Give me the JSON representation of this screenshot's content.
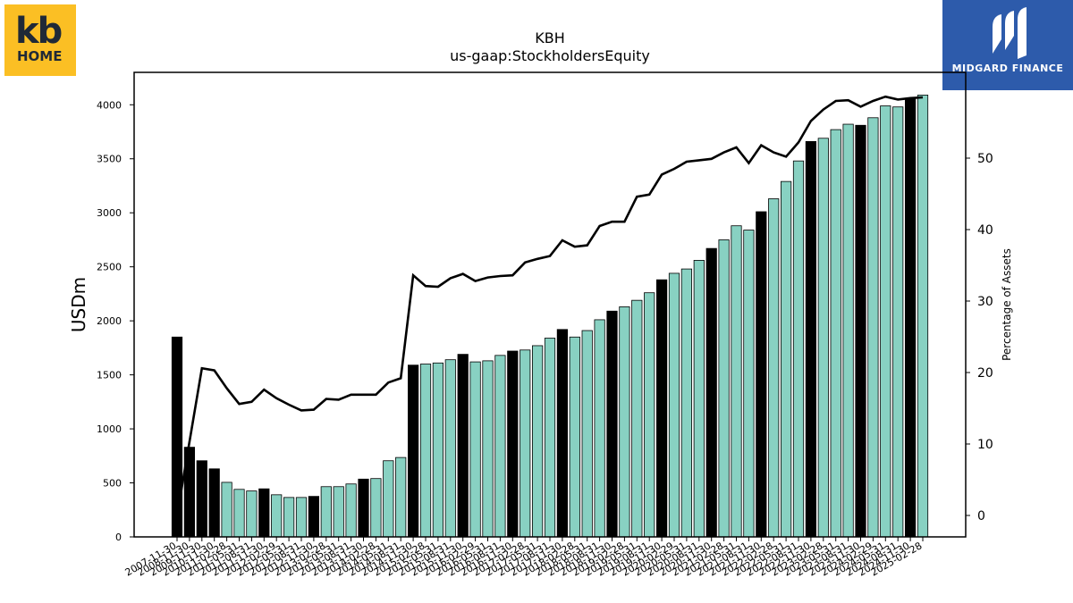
{
  "logos": {
    "left": {
      "line1": "kb",
      "line2": "HOME"
    },
    "right": {
      "text": "MIDGARD FINANCE"
    }
  },
  "chart_data": {
    "type": "bar",
    "title": "KBH",
    "subtitle": "us-gaap:StockholdersEquity",
    "ylabel": "USDm",
    "y2label": "Percentage of Assets",
    "ylim": [
      0,
      4300
    ],
    "y2lim": [
      -3,
      62
    ],
    "yticks": [
      0,
      500,
      1000,
      1500,
      2000,
      2500,
      3000,
      3500,
      4000
    ],
    "y2ticks": [
      0,
      10,
      20,
      30,
      40,
      50
    ],
    "colors": {
      "annual": "#000000",
      "quarterly": "#88d1c2",
      "line": "#000000"
    },
    "categories": [
      "2007-11-30",
      "2008-11-30",
      "2009-11-30",
      "2010-11-30",
      "2011-02-28",
      "2011-05-31",
      "2011-08-31",
      "2011-11-30",
      "2012-02-29",
      "2012-05-31",
      "2012-08-31",
      "2012-11-30",
      "2013-02-28",
      "2013-05-31",
      "2013-08-31",
      "2013-11-30",
      "2014-02-28",
      "2014-05-31",
      "2014-08-31",
      "2014-11-30",
      "2015-02-28",
      "2015-05-31",
      "2015-08-31",
      "2015-11-30",
      "2016-02-29",
      "2016-05-31",
      "2016-08-31",
      "2016-11-30",
      "2017-02-28",
      "2017-05-31",
      "2017-08-31",
      "2017-11-30",
      "2018-02-28",
      "2018-05-31",
      "2018-08-31",
      "2018-11-30",
      "2019-02-28",
      "2019-05-31",
      "2019-08-31",
      "2019-11-30",
      "2020-02-29",
      "2020-05-31",
      "2020-08-31",
      "2020-11-30",
      "2021-02-28",
      "2021-05-31",
      "2021-08-31",
      "2021-11-30",
      "2022-02-28",
      "2022-05-31",
      "2022-08-31",
      "2022-11-30",
      "2023-02-28",
      "2023-05-31",
      "2023-08-31",
      "2023-11-30",
      "2024-02-29",
      "2024-05-31",
      "2024-08-31",
      "2024-11-30",
      "2025-02-28"
    ],
    "annual_flags": [
      1,
      1,
      1,
      1,
      0,
      0,
      0,
      1,
      0,
      0,
      0,
      1,
      0,
      0,
      0,
      1,
      0,
      0,
      0,
      1,
      0,
      0,
      0,
      1,
      0,
      0,
      0,
      1,
      0,
      0,
      0,
      1,
      0,
      0,
      0,
      1,
      0,
      0,
      0,
      1,
      0,
      0,
      0,
      1,
      0,
      0,
      0,
      1,
      0,
      0,
      0,
      1,
      0,
      0,
      0,
      1,
      0,
      0,
      0,
      1,
      0
    ],
    "values": [
      1850,
      830,
      705,
      630,
      505,
      440,
      425,
      445,
      390,
      365,
      365,
      375,
      465,
      465,
      490,
      535,
      540,
      705,
      735,
      1590,
      1600,
      1610,
      1640,
      1690,
      1620,
      1630,
      1680,
      1720,
      1730,
      1770,
      1840,
      1920,
      1850,
      1910,
      2010,
      2090,
      2130,
      2190,
      2260,
      2380,
      2440,
      2480,
      2560,
      2670,
      2750,
      2880,
      2840,
      3010,
      3130,
      3290,
      3480,
      3660,
      3690,
      3770,
      3820,
      3810,
      3880,
      3990,
      3980,
      4060,
      4090
    ],
    "pct_of_assets": [
      0,
      null,
      20.6,
      20.3,
      17.8,
      15.6,
      15.9,
      17.6,
      16.4,
      15.5,
      14.7,
      14.8,
      16.3,
      16.2,
      16.9,
      16.9,
      16.9,
      18.6,
      19.2,
      33.6,
      32.1,
      32,
      33.2,
      33.8,
      32.8,
      33.3,
      33.5,
      33.6,
      35.4,
      35.9,
      36.3,
      38.5,
      37.6,
      37.8,
      40.5,
      41.1,
      41.1,
      44.6,
      44.9,
      47.7,
      48.5,
      49.5,
      49.7,
      49.9,
      50.8,
      51.5,
      49.3,
      51.8,
      50.8,
      50.2,
      52.2,
      55.2,
      56.8,
      58,
      58.1,
      57.2,
      58,
      58.6,
      58.2,
      58.4,
      58.5
    ]
  }
}
